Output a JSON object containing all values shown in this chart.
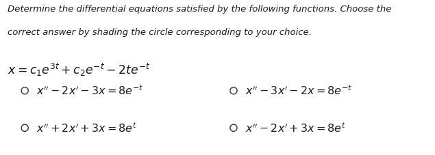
{
  "background_color": "#ffffff",
  "instruction_line1": "Determine the differential equations satisfied by the following functions. Choose the",
  "instruction_line2": "correct answer by shading the circle corresponding to your choice.",
  "instruction_fontsize": 9.5,
  "function_text": "$x = c_1e^{3t} + c_2e^{-t} - 2te^{-t}$",
  "function_fontsize": 12.5,
  "options": [
    {
      "text": "$x'' - 2x' - 3x = 8e^{-t}$",
      "col": 0,
      "row": 0
    },
    {
      "text": "$x'' - 3x' - 2x = 8e^{-t}$",
      "col": 1,
      "row": 0
    },
    {
      "text": "$x'' + 2x' + 3x = 8e^{t}$",
      "col": 0,
      "row": 1
    },
    {
      "text": "$x'' - 2x' + 3x = 8e^{t}$",
      "col": 1,
      "row": 1
    }
  ],
  "option_fontsize": 11.5,
  "text_color": "#1a1a1a",
  "circle_edgecolor": "#333333",
  "circle_linewidth": 1.0
}
